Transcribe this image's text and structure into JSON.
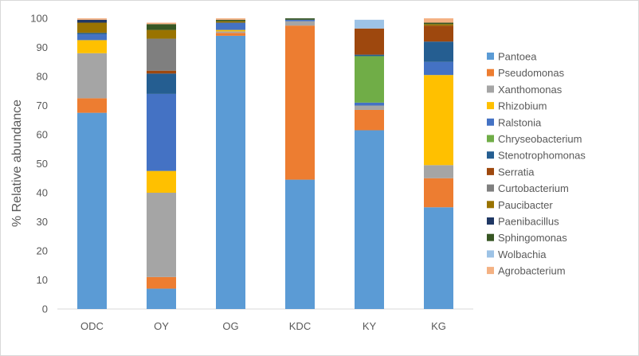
{
  "chart_data": {
    "type": "bar",
    "stacked": true,
    "ylabel": "% Relative abundance",
    "xlabel": "",
    "title": "",
    "ylim": [
      0,
      100
    ],
    "yticks": [
      0,
      10,
      20,
      30,
      40,
      50,
      60,
      70,
      80,
      90,
      100
    ],
    "grid": false,
    "legend_position": "right",
    "categories": [
      "ODC",
      "OY",
      "OG",
      "KDC",
      "KY",
      "KG"
    ],
    "series": [
      {
        "name": "Pantoea",
        "color": "#5B9BD5",
        "values": [
          67.5,
          7,
          94,
          44.5,
          61.5,
          35
        ]
      },
      {
        "name": "Pseudomonas",
        "color": "#ED7D31",
        "values": [
          5,
          4,
          1,
          53,
          7,
          10
        ]
      },
      {
        "name": "Xanthomonas",
        "color": "#A5A5A5",
        "values": [
          15.5,
          29,
          0.5,
          1.5,
          1.5,
          4.5
        ]
      },
      {
        "name": "Rhizobium",
        "color": "#FFC000",
        "values": [
          4.5,
          7.5,
          0.5,
          0,
          0,
          31
        ]
      },
      {
        "name": "Ralstonia",
        "color": "#4472C4",
        "values": [
          2,
          26.5,
          2.5,
          0.5,
          1,
          4.5
        ]
      },
      {
        "name": "Chryseobacterium",
        "color": "#70AD47",
        "values": [
          0,
          0,
          0,
          0,
          16,
          0
        ]
      },
      {
        "name": "Stenotrophomonas",
        "color": "#255E91",
        "values": [
          0.5,
          7,
          0,
          0,
          0.5,
          7
        ]
      },
      {
        "name": "Serratia",
        "color": "#9E480E",
        "values": [
          0,
          1,
          0,
          0,
          9,
          5.5
        ]
      },
      {
        "name": "Curtobacterium",
        "color": "#7F7F7F",
        "values": [
          0,
          11,
          0,
          0,
          0,
          0
        ]
      },
      {
        "name": "Paucibacter",
        "color": "#997300",
        "values": [
          3.5,
          3,
          0.5,
          0,
          0,
          0.5
        ]
      },
      {
        "name": "Paenibacillus",
        "color": "#203864",
        "values": [
          1,
          0,
          0,
          0,
          0,
          0
        ]
      },
      {
        "name": "Sphingomonas",
        "color": "#375623",
        "values": [
          0,
          2,
          0.5,
          0.5,
          0,
          0.5
        ]
      },
      {
        "name": "Wolbachia",
        "color": "#9DC3E6",
        "values": [
          0,
          0,
          0,
          0,
          3,
          0
        ]
      },
      {
        "name": "Agrobacterium",
        "color": "#F4B183",
        "values": [
          0.5,
          0.5,
          0.5,
          0,
          0,
          1.5
        ]
      }
    ]
  }
}
